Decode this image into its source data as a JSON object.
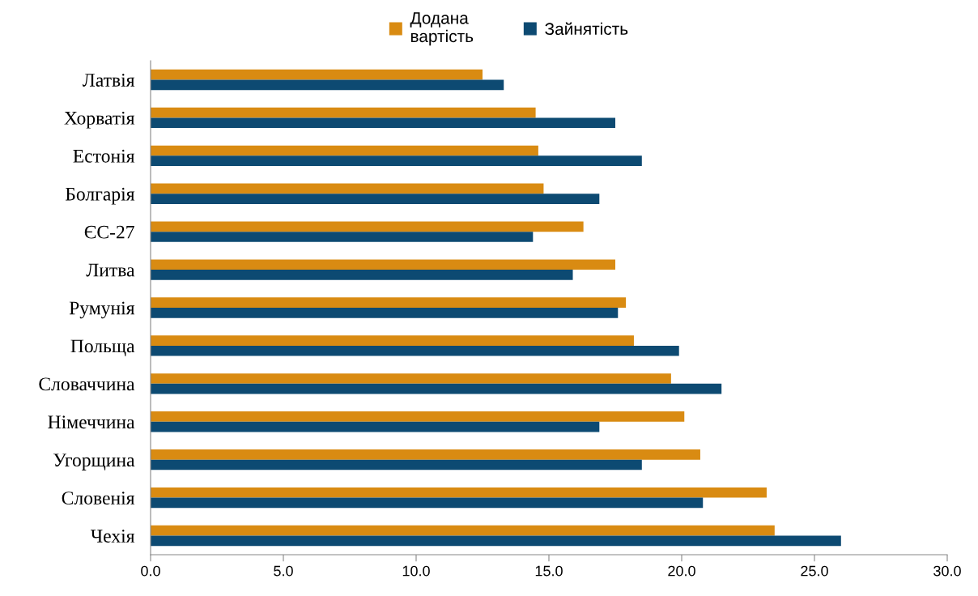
{
  "chart_data": {
    "type": "bar",
    "orientation": "horizontal",
    "categories": [
      "Латвія",
      "Хорватія",
      "Естонія",
      "Болгарія",
      "ЄС-27",
      "Литва",
      "Румунія",
      "Польща",
      "Словаччина",
      "Німеччина",
      "Угорщина",
      "Словенія",
      "Чехія"
    ],
    "series": [
      {
        "name": "Додана\nвартість",
        "color": "#d98b12",
        "values": [
          12.5,
          14.5,
          14.6,
          14.8,
          16.3,
          17.5,
          17.9,
          18.2,
          19.6,
          20.1,
          20.7,
          23.2,
          23.5
        ]
      },
      {
        "name": "Зайнятість",
        "color": "#0d4a72",
        "values": [
          13.3,
          17.5,
          18.5,
          16.9,
          14.4,
          15.9,
          17.6,
          19.9,
          21.5,
          16.9,
          18.5,
          20.8,
          26.0
        ]
      }
    ],
    "xlim": [
      0,
      30
    ],
    "xticks": [
      {
        "value": 0,
        "label": "0.0"
      },
      {
        "value": 5,
        "label": "5.0"
      },
      {
        "value": 10,
        "label": "10.0"
      },
      {
        "value": 15,
        "label": "15.0"
      },
      {
        "value": 20,
        "label": "20.0"
      },
      {
        "value": 25,
        "label": "25.0"
      },
      {
        "value": 30,
        "label": "30.0"
      }
    ],
    "legend": "top",
    "grid": false
  }
}
